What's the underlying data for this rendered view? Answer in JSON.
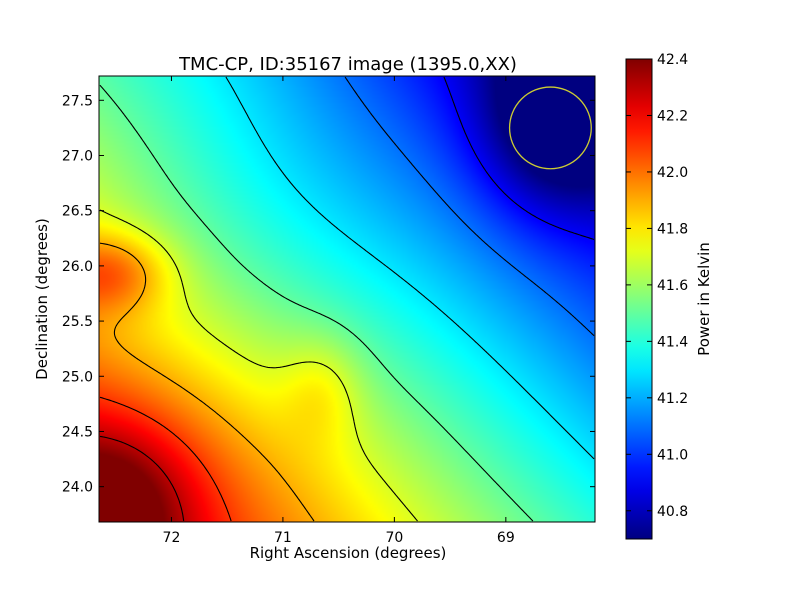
{
  "chart_data": {
    "type": "heatmap",
    "title": "TMC-CP, ID:35167 image (1395.0,XX)",
    "xlabel": "Right Ascension (degrees)",
    "ylabel": "Declination (degrees)",
    "xlim": [
      72.65,
      68.2
    ],
    "ylim": [
      23.68,
      27.72
    ],
    "x_ticks": [
      72,
      71,
      70,
      69
    ],
    "x_tick_labels": [
      "72",
      "71",
      "70",
      "69"
    ],
    "y_ticks": [
      24.0,
      24.5,
      25.0,
      25.5,
      26.0,
      26.5,
      27.0,
      27.5
    ],
    "y_tick_labels": [
      "24.0",
      "24.5",
      "25.0",
      "25.5",
      "26.0",
      "26.5",
      "27.0",
      "27.5"
    ],
    "colorbar": {
      "label": "Power in Kelvin",
      "colormap": "jet",
      "range": [
        40.7,
        42.4
      ],
      "ticks": [
        40.8,
        41.0,
        41.2,
        41.4,
        41.6,
        41.8,
        42.0,
        42.2,
        42.4
      ],
      "tick_labels": [
        "40.8",
        "41.0",
        "41.2",
        "41.4",
        "41.6",
        "41.8",
        "42.0",
        "42.2",
        "42.4"
      ]
    },
    "field": {
      "description_values": "approximate power at sample points (RA, Dec, K)",
      "samples": [
        {
          "ra": 72.55,
          "dec": 23.8,
          "value": 42.38
        },
        {
          "ra": 72.5,
          "dec": 25.95,
          "value": 42.3
        },
        {
          "ra": 71.6,
          "dec": 24.8,
          "value": 42.05
        },
        {
          "ra": 71.0,
          "dec": 25.5,
          "value": 41.8
        },
        {
          "ra": 70.0,
          "dec": 24.5,
          "value": 41.6
        },
        {
          "ra": 69.3,
          "dec": 25.9,
          "value": 41.25
        },
        {
          "ra": 68.7,
          "dec": 27.25,
          "value": 40.72
        },
        {
          "ra": 68.3,
          "dec": 26.0,
          "value": 40.95
        }
      ]
    },
    "contour_levels": [
      40.9,
      41.1,
      41.3,
      41.5,
      41.7,
      41.9,
      42.1,
      42.3
    ],
    "beam_circle": {
      "ra": 68.6,
      "dec": 27.25,
      "radius_deg": 0.37,
      "color": "#cccc33"
    },
    "contour_color": "#000000",
    "grid": false
  }
}
